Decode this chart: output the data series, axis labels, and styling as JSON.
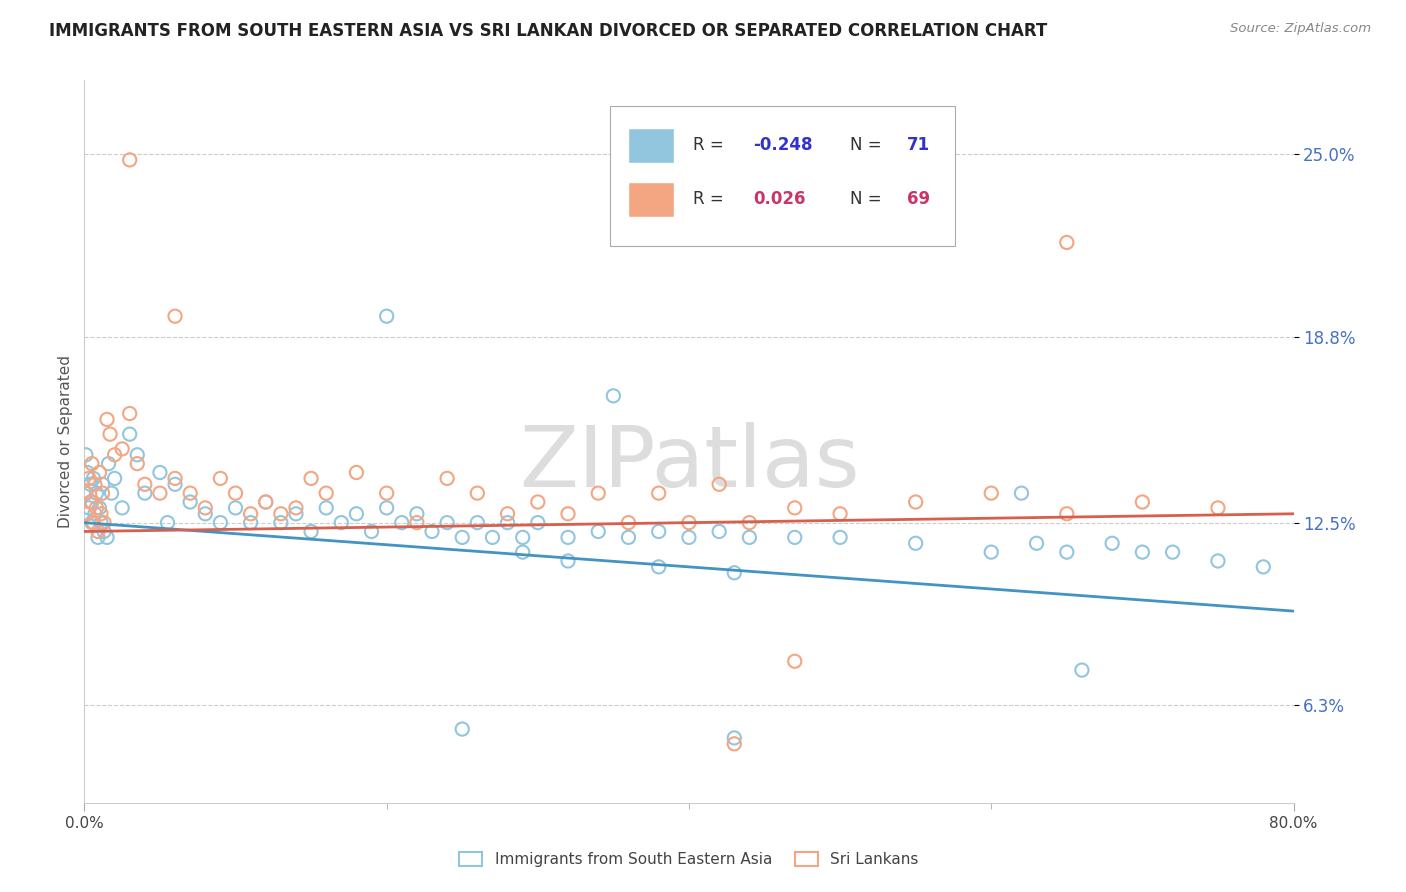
{
  "title": "IMMIGRANTS FROM SOUTH EASTERN ASIA VS SRI LANKAN DIVORCED OR SEPARATED CORRELATION CHART",
  "source": "Source: ZipAtlas.com",
  "ylabel": "Divorced or Separated",
  "ytick_values": [
    6.3,
    12.5,
    18.8,
    25.0
  ],
  "legend_label1": "Immigrants from South Eastern Asia",
  "legend_label2": "Sri Lankans",
  "color_blue": "#92c5de",
  "color_blue_line": "#4393c3",
  "color_pink": "#f4a582",
  "color_pink_line": "#d6604d",
  "watermark": "ZIPatlas",
  "xmin": 0.0,
  "xmax": 80.0,
  "ymin": 3.0,
  "ymax": 27.5,
  "blue_x": [
    0.1,
    0.2,
    0.3,
    0.4,
    0.5,
    0.5,
    0.6,
    0.7,
    0.8,
    0.9,
    1.0,
    1.1,
    1.2,
    1.3,
    1.5,
    1.6,
    1.8,
    2.0,
    2.5,
    3.0,
    3.5,
    4.0,
    5.0,
    5.5,
    6.0,
    7.0,
    8.0,
    9.0,
    10.0,
    11.0,
    12.0,
    13.0,
    14.0,
    15.0,
    16.0,
    17.0,
    18.0,
    19.0,
    20.0,
    21.0,
    22.0,
    23.0,
    24.0,
    25.0,
    26.0,
    27.0,
    28.0,
    29.0,
    30.0,
    32.0,
    34.0,
    36.0,
    38.0,
    40.0,
    42.0,
    44.0,
    47.0,
    50.0,
    55.0,
    60.0,
    63.0,
    65.0,
    68.0,
    70.0,
    72.0,
    75.0,
    78.0,
    29.0,
    32.0,
    38.0,
    43.0
  ],
  "blue_y": [
    13.5,
    14.2,
    13.0,
    13.8,
    12.5,
    13.2,
    14.0,
    12.8,
    13.5,
    12.0,
    13.0,
    12.5,
    13.8,
    12.2,
    12.0,
    14.5,
    13.5,
    14.0,
    13.0,
    15.5,
    14.8,
    13.5,
    14.2,
    12.5,
    13.8,
    13.2,
    12.8,
    12.5,
    13.0,
    12.5,
    13.2,
    12.5,
    12.8,
    12.2,
    13.0,
    12.5,
    12.8,
    12.2,
    13.0,
    12.5,
    12.8,
    12.2,
    12.5,
    12.0,
    12.5,
    12.0,
    12.5,
    12.0,
    12.5,
    12.0,
    12.2,
    12.0,
    12.2,
    12.0,
    12.2,
    12.0,
    12.0,
    12.0,
    11.8,
    11.5,
    11.8,
    11.5,
    11.8,
    11.5,
    11.5,
    11.2,
    11.0,
    11.5,
    11.2,
    11.0,
    10.8
  ],
  "blue_special": [
    [
      0.1,
      14.8
    ],
    [
      20.0,
      19.5
    ],
    [
      35.0,
      16.8
    ],
    [
      62.0,
      13.5
    ],
    [
      66.0,
      7.5
    ],
    [
      25.0,
      5.5
    ],
    [
      43.0,
      5.2
    ]
  ],
  "pink_x": [
    0.1,
    0.2,
    0.3,
    0.4,
    0.5,
    0.6,
    0.7,
    0.8,
    0.9,
    1.0,
    1.1,
    1.2,
    1.3,
    1.5,
    1.7,
    2.0,
    2.5,
    3.0,
    3.5,
    4.0,
    5.0,
    6.0,
    7.0,
    8.0,
    9.0,
    10.0,
    11.0,
    12.0,
    13.0,
    14.0,
    15.0,
    16.0,
    18.0,
    20.0,
    22.0,
    24.0,
    26.0,
    28.0,
    30.0,
    32.0,
    34.0,
    36.0,
    38.0,
    40.0,
    42.0,
    44.0,
    47.0,
    50.0,
    55.0,
    60.0,
    65.0,
    70.0,
    75.0
  ],
  "pink_y": [
    13.5,
    12.8,
    14.0,
    13.2,
    14.5,
    12.5,
    13.8,
    13.0,
    12.2,
    14.2,
    12.8,
    13.5,
    12.5,
    16.0,
    15.5,
    14.8,
    15.0,
    16.2,
    14.5,
    13.8,
    13.5,
    14.0,
    13.5,
    13.0,
    14.0,
    13.5,
    12.8,
    13.2,
    12.8,
    13.0,
    14.0,
    13.5,
    14.2,
    13.5,
    12.5,
    14.0,
    13.5,
    12.8,
    13.2,
    12.8,
    13.5,
    12.5,
    13.5,
    12.5,
    13.8,
    12.5,
    13.0,
    12.8,
    13.2,
    13.5,
    12.8,
    13.2,
    13.0
  ],
  "pink_special": [
    [
      3.0,
      24.8
    ],
    [
      6.0,
      19.5
    ],
    [
      65.0,
      22.0
    ],
    [
      47.0,
      7.8
    ],
    [
      43.0,
      5.0
    ]
  ],
  "trend_blue_start_y": 12.5,
  "trend_blue_end_y": 9.5,
  "trend_pink_start_y": 12.2,
  "trend_pink_end_y": 12.8
}
